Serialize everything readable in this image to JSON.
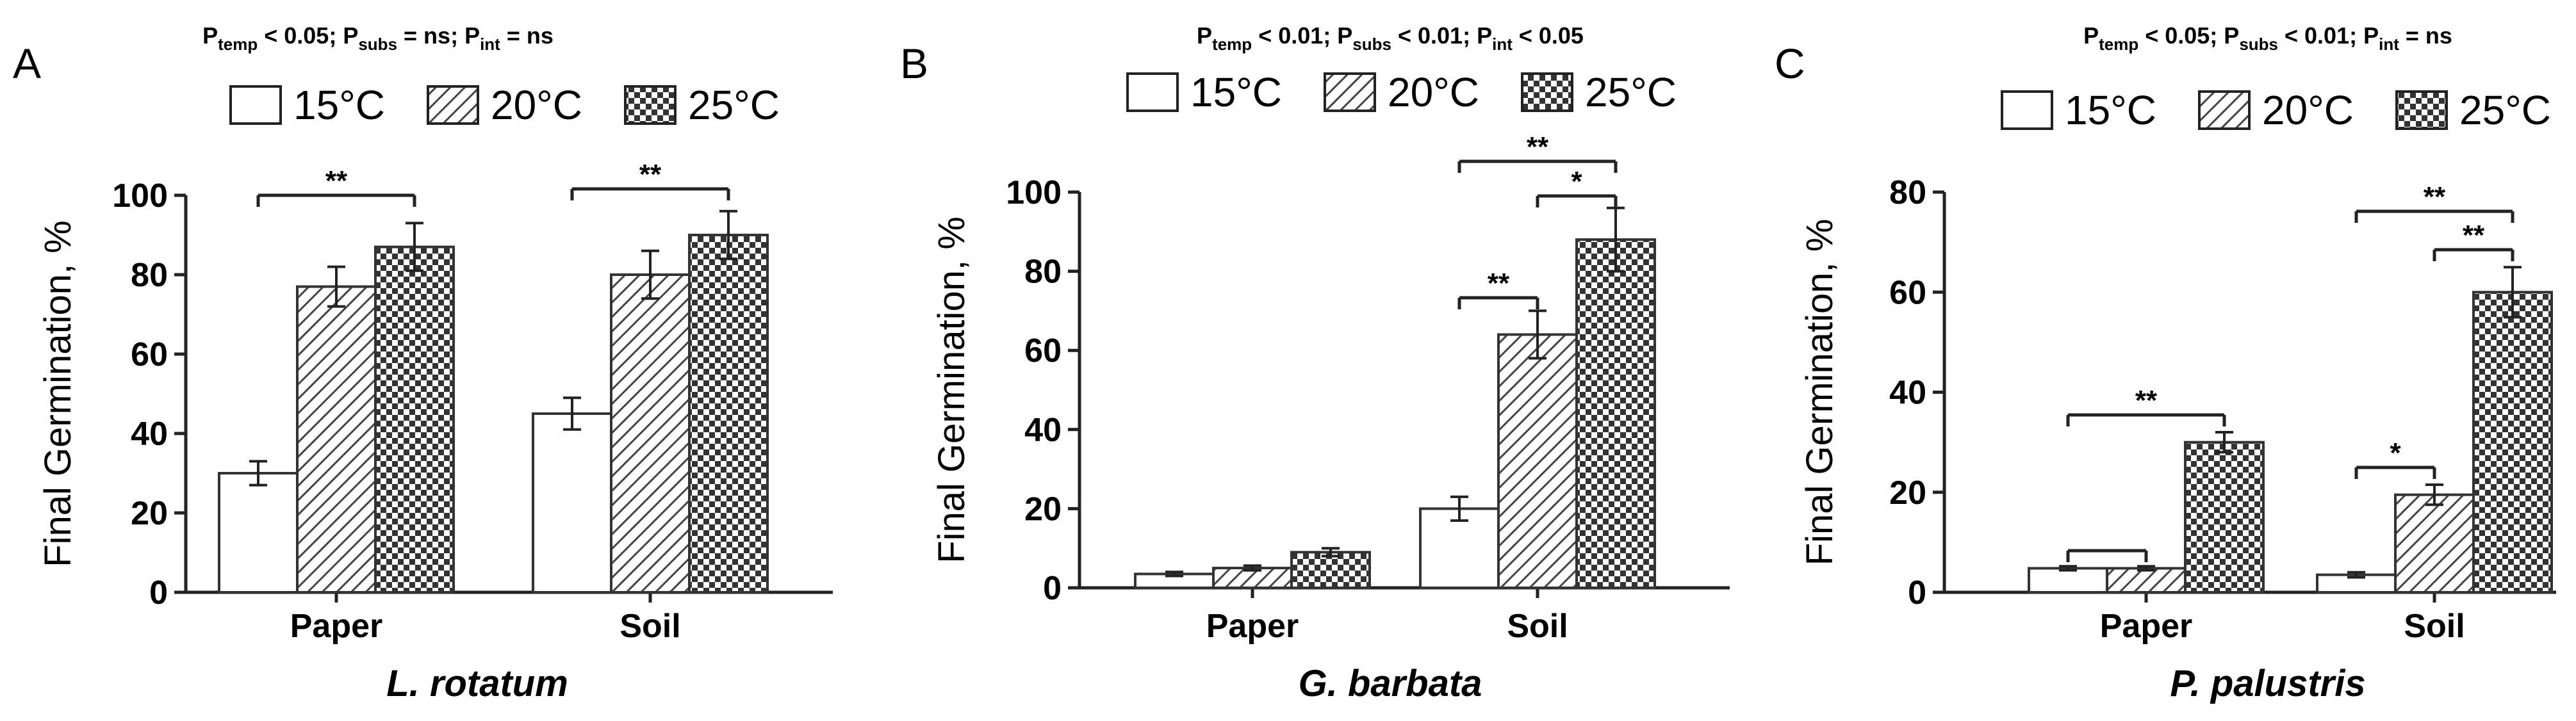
{
  "legend": {
    "items": [
      {
        "label": "15°C",
        "pattern": "empty"
      },
      {
        "label": "20°C",
        "pattern": "hatch"
      },
      {
        "label": "25°C",
        "pattern": "checker"
      }
    ]
  },
  "chart_data": [
    {
      "panel": "A",
      "type": "bar",
      "stats": [
        {
          "name": "temp",
          "relation": "< 0.05"
        },
        {
          "name": "subs",
          "relation": "= ns"
        },
        {
          "name": "int",
          "relation": "= ns"
        }
      ],
      "categories": [
        "Paper",
        "Soil"
      ],
      "series": [
        {
          "name": "15°C",
          "values": [
            30,
            45
          ],
          "errors": [
            3,
            4
          ]
        },
        {
          "name": "20°C",
          "values": [
            77,
            80
          ],
          "errors": [
            5,
            6
          ]
        },
        {
          "name": "25°C",
          "values": [
            87,
            90
          ],
          "errors": [
            6,
            6
          ]
        }
      ],
      "ylabel": "Final Germination, %",
      "xlabel": "L. rotatum",
      "ylim": [
        0,
        100
      ],
      "yticks": [
        0,
        20,
        40,
        60,
        80,
        100
      ],
      "significance": [
        {
          "category": 0,
          "from": 0,
          "to": 2,
          "label": "**"
        },
        {
          "category": 1,
          "from": 0,
          "to": 2,
          "label": "**"
        }
      ]
    },
    {
      "panel": "B",
      "type": "bar",
      "stats": [
        {
          "name": "temp",
          "relation": "< 0.01"
        },
        {
          "name": "subs",
          "relation": "< 0.01"
        },
        {
          "name": "int",
          "relation": "< 0.05"
        }
      ],
      "categories": [
        "Paper",
        "Soil"
      ],
      "series": [
        {
          "name": "15°C",
          "values": [
            3.5,
            20
          ],
          "errors": [
            0.5,
            3
          ]
        },
        {
          "name": "20°C",
          "values": [
            5,
            64
          ],
          "errors": [
            0.6,
            6
          ]
        },
        {
          "name": "25°C",
          "values": [
            9,
            88
          ],
          "errors": [
            1,
            8
          ]
        }
      ],
      "ylabel": "Final Germination, %",
      "xlabel": "G. barbata",
      "ylim": [
        0,
        100
      ],
      "yticks": [
        0,
        20,
        40,
        60,
        80,
        100
      ],
      "significance": [
        {
          "category": 1,
          "from": 0,
          "to": 2,
          "label": "**"
        },
        {
          "category": 1,
          "from": 1,
          "to": 2,
          "label": "*"
        },
        {
          "category": 1,
          "from": 0,
          "to": 1,
          "label": "**"
        }
      ]
    },
    {
      "panel": "C",
      "type": "bar",
      "stats": [
        {
          "name": "temp",
          "relation": "< 0.05"
        },
        {
          "name": "subs",
          "relation": "< 0.01"
        },
        {
          "name": "int",
          "relation": "= ns"
        }
      ],
      "categories": [
        "Paper",
        "Soil"
      ],
      "series": [
        {
          "name": "15°C",
          "values": [
            4.8,
            3.5
          ],
          "errors": [
            0.4,
            0.5
          ]
        },
        {
          "name": "20°C",
          "values": [
            4.8,
            19.5
          ],
          "errors": [
            0.4,
            2
          ]
        },
        {
          "name": "25°C",
          "values": [
            30,
            60
          ],
          "errors": [
            2,
            5
          ]
        }
      ],
      "ylabel": "Final Germination, %",
      "xlabel": "P. palustris",
      "ylim": [
        0,
        80
      ],
      "yticks": [
        0,
        20,
        40,
        60,
        80
      ],
      "significance": [
        {
          "category": 0,
          "from": 0,
          "to": 2,
          "label": "**"
        },
        {
          "category": 0,
          "from": 0,
          "to": 1,
          "label": ""
        },
        {
          "category": 1,
          "from": 0,
          "to": 2,
          "label": "**"
        },
        {
          "category": 1,
          "from": 1,
          "to": 2,
          "label": "**"
        },
        {
          "category": 1,
          "from": 0,
          "to": 1,
          "label": "*"
        }
      ]
    }
  ]
}
